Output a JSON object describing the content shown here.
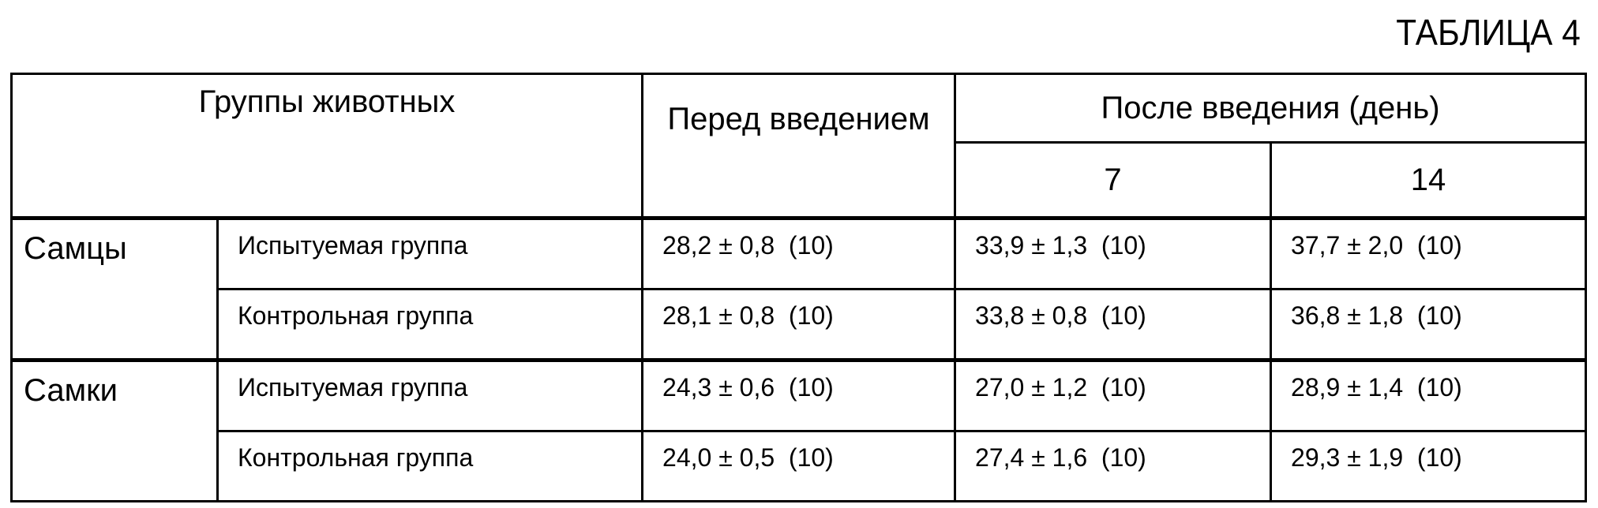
{
  "title": "ТАБЛИЦА 4",
  "header": {
    "groups": "Группы животных",
    "before": "Перед введением",
    "after": "После введения (день)",
    "days": [
      "7",
      "14"
    ]
  },
  "sections": [
    {
      "sex": "Самцы",
      "rows": [
        {
          "group": "Испытуемая группа",
          "before": "28,2 ± 0,8  (10)",
          "day7": "33,9 ± 1,3  (10)",
          "day14": "37,7 ± 2,0  (10)"
        },
        {
          "group": "Контрольная группа",
          "before": "28,1 ± 0,8  (10)",
          "day7": "33,8 ± 0,8  (10)",
          "day14": "36,8 ± 1,8  (10)"
        }
      ]
    },
    {
      "sex": "Самки",
      "rows": [
        {
          "group": "Испытуемая группа",
          "before": "24,3 ± 0,6  (10)",
          "day7": "27,0 ± 1,2  (10)",
          "day14": "28,9 ± 1,4  (10)"
        },
        {
          "group": "Контрольная группа",
          "before": "24,0 ± 0,5  (10)",
          "day7": "27,4 ± 1,6  (10)",
          "day14": "29,3 ± 1,9  (10)"
        }
      ]
    }
  ]
}
